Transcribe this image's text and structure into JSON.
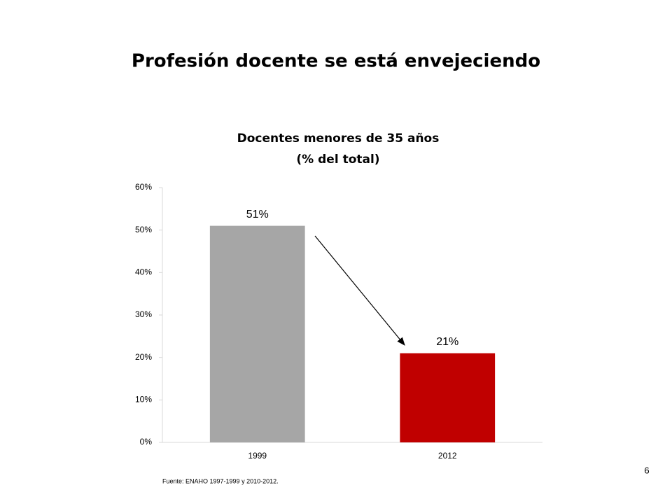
{
  "slide": {
    "title": "Profesión docente se está envejeciendo",
    "source": "Fuente: ENAHO 1997-1999 y 2010-2012.",
    "page_number": "6"
  },
  "chart_data": {
    "type": "bar",
    "title": "Docentes menores de 35 años",
    "subtitle": "(% del total)",
    "categories": [
      "1999",
      "2012"
    ],
    "values": [
      51,
      21
    ],
    "value_labels": [
      "51%",
      "21%"
    ],
    "colors": [
      "#a6a6a6",
      "#c00000"
    ],
    "ylim": [
      0,
      60
    ],
    "yticks": [
      {
        "value": 0,
        "label": "0%"
      },
      {
        "value": 10,
        "label": "10%"
      },
      {
        "value": 20,
        "label": "20%"
      },
      {
        "value": 30,
        "label": "30%"
      },
      {
        "value": 40,
        "label": "40%"
      },
      {
        "value": 50,
        "label": "50%"
      },
      {
        "value": 60,
        "label": "60%"
      }
    ],
    "grid": false
  }
}
